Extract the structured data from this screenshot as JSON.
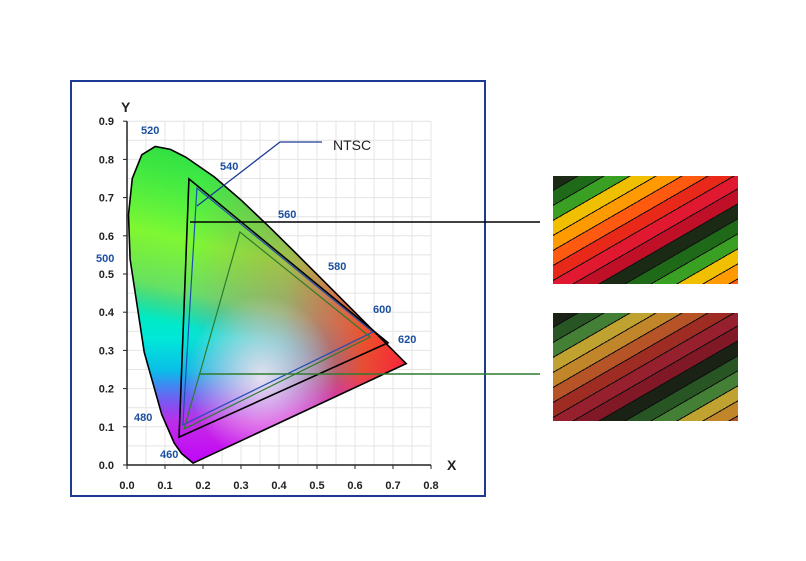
{
  "diagram": {
    "y_axis_label": "Y",
    "x_axis_label": "X",
    "x_ticks": [
      "0.0",
      "0.1",
      "0.2",
      "0.3",
      "0.4",
      "0.5",
      "0.6",
      "0.7",
      "0.8"
    ],
    "y_ticks": [
      "0.0",
      "0.1",
      "0.2",
      "0.3",
      "0.4",
      "0.5",
      "0.6",
      "0.7",
      "0.8",
      "0.9"
    ],
    "wavelength_labels": [
      "460",
      "480",
      "500",
      "520",
      "540",
      "560",
      "580",
      "600",
      "620"
    ],
    "ntsc_label": "NTSC",
    "gamuts": [
      {
        "id": "wide",
        "color": "#000000",
        "vertices": [
          [
            0.163,
            0.749
          ],
          [
            0.687,
            0.32
          ],
          [
            0.137,
            0.073
          ]
        ]
      },
      {
        "id": "ntsc",
        "color": "#1f4fb0",
        "vertices": [
          [
            0.184,
            0.725
          ],
          [
            0.647,
            0.348
          ],
          [
            0.147,
            0.105
          ]
        ]
      },
      {
        "id": "standard",
        "color": "#2e7a2e",
        "vertices": [
          [
            0.297,
            0.61
          ],
          [
            0.64,
            0.335
          ],
          [
            0.15,
            0.094
          ]
        ]
      }
    ],
    "colors": {
      "frame": "#1c3a94",
      "wavelength_text": "#1a4fa0",
      "pointer_black": "#000000",
      "pointer_green": "#2e7a2e"
    }
  },
  "photos": [
    {
      "name": "wide-gamut-pencils-photo",
      "saturation": 1.0
    },
    {
      "name": "standard-gamut-pencils-photo",
      "saturation": 0.7
    }
  ]
}
